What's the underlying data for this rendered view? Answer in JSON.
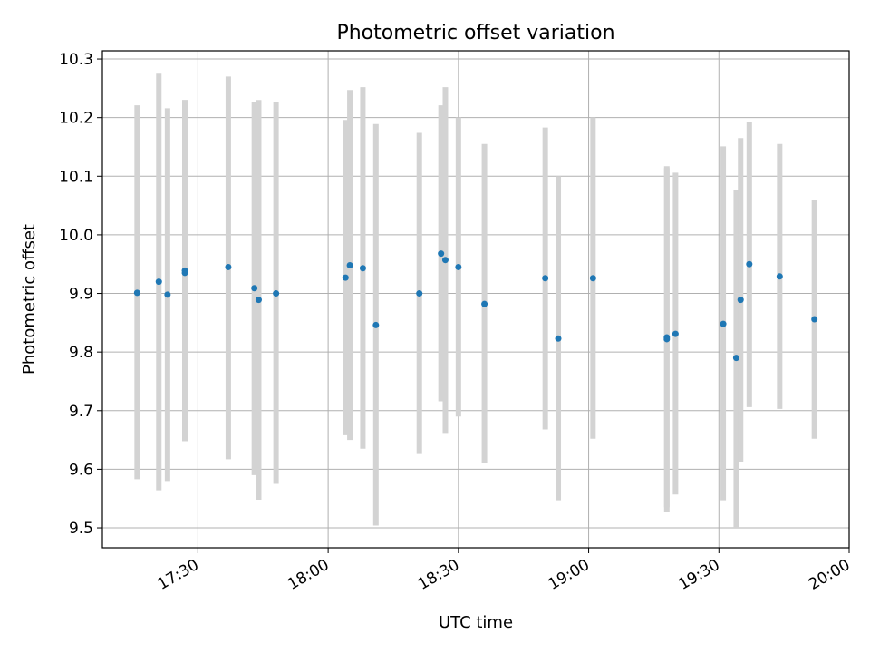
{
  "chart_data": {
    "type": "scatter",
    "title": "Photometric offset variation",
    "xlabel": "UTC time",
    "ylabel": "Photometric offset",
    "xlim": [
      "17:08",
      "20:00"
    ],
    "ylim": [
      9.466,
      10.314
    ],
    "x_ticks": [
      "17:30",
      "18:00",
      "18:30",
      "19:00",
      "19:30",
      "20:00"
    ],
    "y_ticks": [
      "9.5",
      "9.6",
      "9.7",
      "9.8",
      "9.9",
      "10.0",
      "10.1",
      "10.2",
      "10.3"
    ],
    "grid": true,
    "colors": {
      "point": "#1f77b4",
      "errorbar": "#d3d3d3",
      "grid": "#b0b0b0"
    },
    "series": [
      {
        "points": [
          {
            "x": "17:16",
            "y": 9.901,
            "ylow": 9.583,
            "yhigh": 10.221
          },
          {
            "x": "17:21",
            "y": 9.92,
            "ylow": 9.564,
            "yhigh": 10.275
          },
          {
            "x": "17:23",
            "y": 9.898,
            "ylow": 9.58,
            "yhigh": 10.216
          },
          {
            "x": "17:27",
            "y": 9.935,
            "ylow": 9.648,
            "yhigh": 10.23
          },
          {
            "x": "17:27",
            "y": 9.939,
            "ylow": 9.648,
            "yhigh": 10.23
          },
          {
            "x": "17:37",
            "y": 9.945,
            "ylow": 9.617,
            "yhigh": 10.27
          },
          {
            "x": "17:43",
            "y": 9.909,
            "ylow": 9.59,
            "yhigh": 10.226
          },
          {
            "x": "17:44",
            "y": 9.889,
            "ylow": 9.548,
            "yhigh": 10.23
          },
          {
            "x": "17:48",
            "y": 9.9,
            "ylow": 9.575,
            "yhigh": 10.226
          },
          {
            "x": "18:04",
            "y": 9.927,
            "ylow": 9.658,
            "yhigh": 10.196
          },
          {
            "x": "18:05",
            "y": 9.948,
            "ylow": 9.65,
            "yhigh": 10.247
          },
          {
            "x": "18:08",
            "y": 9.943,
            "ylow": 9.635,
            "yhigh": 10.252
          },
          {
            "x": "18:11",
            "y": 9.846,
            "ylow": 9.504,
            "yhigh": 10.189
          },
          {
            "x": "18:21",
            "y": 9.9,
            "ylow": 9.626,
            "yhigh": 10.174
          },
          {
            "x": "18:26",
            "y": 9.968,
            "ylow": 9.716,
            "yhigh": 10.221
          },
          {
            "x": "18:27",
            "y": 9.957,
            "ylow": 9.662,
            "yhigh": 10.252
          },
          {
            "x": "18:30",
            "y": 9.945,
            "ylow": 9.69,
            "yhigh": 10.2
          },
          {
            "x": "18:36",
            "y": 9.882,
            "ylow": 9.61,
            "yhigh": 10.155
          },
          {
            "x": "18:50",
            "y": 9.926,
            "ylow": 9.668,
            "yhigh": 10.183
          },
          {
            "x": "18:53",
            "y": 9.823,
            "ylow": 9.547,
            "yhigh": 10.1
          },
          {
            "x": "19:01",
            "y": 9.926,
            "ylow": 9.652,
            "yhigh": 10.2
          },
          {
            "x": "19:18",
            "y": 9.825,
            "ylow": 9.535,
            "yhigh": 10.117
          },
          {
            "x": "19:18",
            "y": 9.822,
            "ylow": 9.527,
            "yhigh": 10.114
          },
          {
            "x": "19:20",
            "y": 9.831,
            "ylow": 9.557,
            "yhigh": 10.106
          },
          {
            "x": "19:31",
            "y": 9.848,
            "ylow": 9.547,
            "yhigh": 10.151
          },
          {
            "x": "19:34",
            "y": 9.79,
            "ylow": 9.5,
            "yhigh": 10.077
          },
          {
            "x": "19:35",
            "y": 9.889,
            "ylow": 9.613,
            "yhigh": 10.165
          },
          {
            "x": "19:37",
            "y": 9.95,
            "ylow": 9.706,
            "yhigh": 10.193
          },
          {
            "x": "19:44",
            "y": 9.929,
            "ylow": 9.703,
            "yhigh": 10.155
          },
          {
            "x": "19:52",
            "y": 9.856,
            "ylow": 9.652,
            "yhigh": 10.06
          }
        ]
      }
    ]
  }
}
